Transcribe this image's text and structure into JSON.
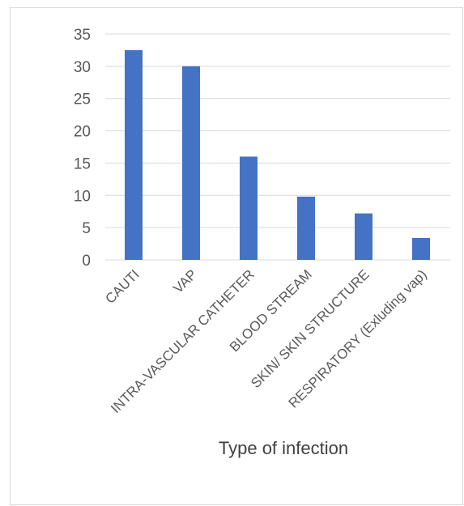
{
  "chart_data": {
    "type": "bar",
    "categories": [
      "CAUTI",
      "VAP",
      "INTRA-VASCULAR CATHETER",
      "BLOOD STREAM",
      "SKIN/ SKIN STRUCTURE",
      "RESPIRATORY (Exluding vap)"
    ],
    "values": [
      32.5,
      30,
      16,
      9.8,
      7.2,
      3.4
    ],
    "xlabel": "Type of infection",
    "ylabel": "",
    "ylim": [
      0,
      35
    ],
    "yticks": [
      0,
      5,
      10,
      15,
      20,
      25,
      30,
      35
    ],
    "grid": true,
    "bar_color": "#4472c4",
    "grid_color": "#d9d9d9"
  }
}
